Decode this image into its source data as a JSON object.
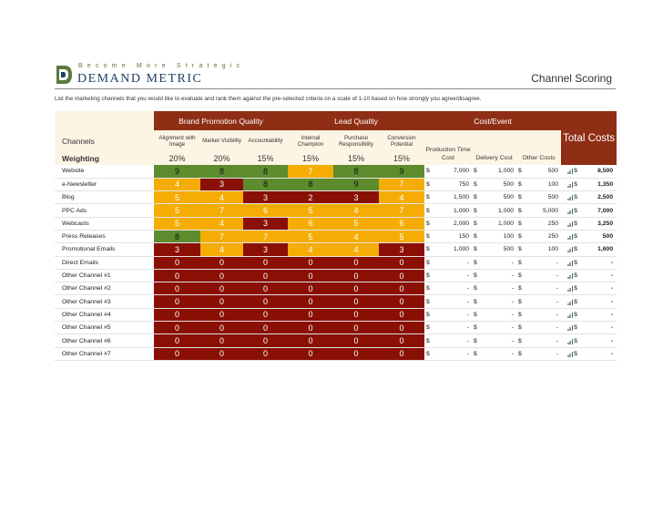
{
  "header": {
    "tagline": "Become More Strategic",
    "brand": "DEMAND METRIC",
    "title": "Channel Scoring",
    "instructions": "List the marketing channels that you would like to evaluate and rank them against the pre-selected criteria on a scale of 1-10 based on how strongly you agree/disagree."
  },
  "groups": {
    "brand": "Brand Promotion Quality",
    "lead": "Lead Quality",
    "cost": "Cost/Event",
    "total": "Total Costs"
  },
  "columns": {
    "channels": "Channels",
    "alignment": "Alignment with Image",
    "visibility": "Market Visibility",
    "accountability": "Accountability",
    "champion": "Internal Champion",
    "purchase": "Purchase Responsibility",
    "conversion": "Conversion Potential",
    "production": "Production Time Cost",
    "delivery": "Delivery Cost",
    "other": "Other Costs"
  },
  "weighting": {
    "label": "Weighting",
    "values": [
      "20%",
      "20%",
      "15%",
      "15%",
      "15%",
      "15%"
    ]
  },
  "colors": {
    "green": "#5c8c2e",
    "yellow": "#f5ad05",
    "red": "#8a0f05",
    "header": "#8e2e14"
  },
  "rows": [
    {
      "name": "Website",
      "scores": [
        "9",
        "8",
        "8",
        "7",
        "8",
        "9"
      ],
      "levels": [
        "green",
        "green",
        "green",
        "yellow",
        "green",
        "green"
      ],
      "production": "7,000",
      "delivery": "1,000",
      "other": "500",
      "total": "8,500"
    },
    {
      "name": "e-Newsletter",
      "scores": [
        "4",
        "3",
        "8",
        "8",
        "9",
        "7"
      ],
      "levels": [
        "yellow",
        "red",
        "green",
        "green",
        "green",
        "yellow"
      ],
      "production": "750",
      "delivery": "500",
      "other": "100",
      "total": "1,350"
    },
    {
      "name": "Blog",
      "scores": [
        "5",
        "4",
        "3",
        "2",
        "3",
        "4"
      ],
      "levels": [
        "yellow",
        "yellow",
        "red",
        "red",
        "red",
        "yellow"
      ],
      "production": "1,500",
      "delivery": "500",
      "other": "500",
      "total": "2,500"
    },
    {
      "name": "PPC Ads",
      "scores": [
        "5",
        "7",
        "6",
        "5",
        "4",
        "7"
      ],
      "levels": [
        "yellow",
        "yellow",
        "yellow",
        "yellow",
        "yellow",
        "yellow"
      ],
      "production": "1,000",
      "delivery": "1,000",
      "other": "5,000",
      "total": "7,000"
    },
    {
      "name": "Webcasts",
      "scores": [
        "5",
        "4",
        "3",
        "6",
        "5",
        "6"
      ],
      "levels": [
        "yellow",
        "yellow",
        "red",
        "yellow",
        "yellow",
        "yellow"
      ],
      "production": "2,000",
      "delivery": "1,000",
      "other": "250",
      "total": "3,250"
    },
    {
      "name": "Press Releases",
      "scores": [
        "8",
        "7",
        "7",
        "5",
        "4",
        "5"
      ],
      "levels": [
        "green",
        "yellow",
        "yellow",
        "yellow",
        "yellow",
        "yellow"
      ],
      "production": "150",
      "delivery": "100",
      "other": "250",
      "total": "500"
    },
    {
      "name": "Promotional Emails",
      "scores": [
        "3",
        "4",
        "3",
        "4",
        "4",
        "3"
      ],
      "levels": [
        "red",
        "yellow",
        "red",
        "yellow",
        "yellow",
        "red"
      ],
      "production": "1,000",
      "delivery": "500",
      "other": "100",
      "total": "1,600"
    },
    {
      "name": "Direct Emails",
      "scores": [
        "0",
        "0",
        "0",
        "0",
        "0",
        "0"
      ],
      "levels": [
        "red",
        "red",
        "red",
        "red",
        "red",
        "red"
      ],
      "production": "-",
      "delivery": "-",
      "other": "-",
      "total": "-"
    },
    {
      "name": "Other Channel #1",
      "scores": [
        "0",
        "0",
        "0",
        "0",
        "0",
        "0"
      ],
      "levels": [
        "red",
        "red",
        "red",
        "red",
        "red",
        "red"
      ],
      "production": "-",
      "delivery": "-",
      "other": "-",
      "total": "-"
    },
    {
      "name": "Other Channel #2",
      "scores": [
        "0",
        "0",
        "0",
        "0",
        "0",
        "0"
      ],
      "levels": [
        "red",
        "red",
        "red",
        "red",
        "red",
        "red"
      ],
      "production": "-",
      "delivery": "-",
      "other": "-",
      "total": "-"
    },
    {
      "name": "Other Channel #3",
      "scores": [
        "0",
        "0",
        "0",
        "0",
        "0",
        "0"
      ],
      "levels": [
        "red",
        "red",
        "red",
        "red",
        "red",
        "red"
      ],
      "production": "-",
      "delivery": "-",
      "other": "-",
      "total": "-"
    },
    {
      "name": "Other Channel #4",
      "scores": [
        "0",
        "0",
        "0",
        "0",
        "0",
        "0"
      ],
      "levels": [
        "red",
        "red",
        "red",
        "red",
        "red",
        "red"
      ],
      "production": "-",
      "delivery": "-",
      "other": "-",
      "total": "-"
    },
    {
      "name": "Other Channel #5",
      "scores": [
        "0",
        "0",
        "0",
        "0",
        "0",
        "0"
      ],
      "levels": [
        "red",
        "red",
        "red",
        "red",
        "red",
        "red"
      ],
      "production": "-",
      "delivery": "-",
      "other": "-",
      "total": "-"
    },
    {
      "name": "Other Channel #6",
      "scores": [
        "0",
        "0",
        "0",
        "0",
        "0",
        "0"
      ],
      "levels": [
        "red",
        "red",
        "red",
        "red",
        "red",
        "red"
      ],
      "production": "-",
      "delivery": "-",
      "other": "-",
      "total": "-"
    },
    {
      "name": "Other Channel #7",
      "scores": [
        "0",
        "0",
        "0",
        "0",
        "0",
        "0"
      ],
      "levels": [
        "red",
        "red",
        "red",
        "red",
        "red",
        "red"
      ],
      "production": "-",
      "delivery": "-",
      "other": "-",
      "total": "-"
    }
  ],
  "currency": "$",
  "icons": {
    "logo": "demand-metric-logo",
    "total": "signal-bars-icon"
  }
}
